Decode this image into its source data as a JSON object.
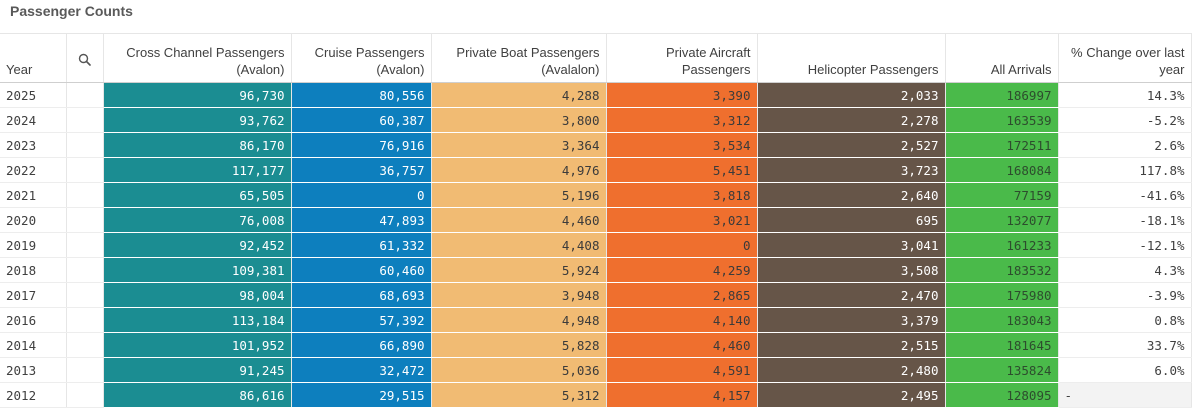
{
  "title": "Passenger Counts",
  "columns": {
    "year": "Year",
    "search_icon": "search-icon",
    "cross_channel": "Cross Channel Passengers (Avalon)",
    "cruise": "Cruise Passengers (Avalon)",
    "private_boat": "Private Boat Passengers (Avalalon)",
    "private_aircraft": "Private Aircraft Passengers",
    "helicopter": "Helicopter Passengers",
    "all_arrivals": "All Arrivals",
    "pct_change": "% Change over last year"
  },
  "colors": {
    "cross_channel": "#1b8d92",
    "cruise": "#0d7fbe",
    "private_boat": "#f1bb73",
    "private_aircraft": "#ef6f2e",
    "helicopter": "#665548",
    "all_arrivals": "#4aba4a"
  },
  "rows": [
    {
      "year": "2025",
      "cross": "96,730",
      "cruise": "80,556",
      "boat": "4,288",
      "air": "3,390",
      "heli": "2,033",
      "all": "186997",
      "pct": "14.3%"
    },
    {
      "year": "2024",
      "cross": "93,762",
      "cruise": "60,387",
      "boat": "3,800",
      "air": "3,312",
      "heli": "2,278",
      "all": "163539",
      "pct": "-5.2%"
    },
    {
      "year": "2023",
      "cross": "86,170",
      "cruise": "76,916",
      "boat": "3,364",
      "air": "3,534",
      "heli": "2,527",
      "all": "172511",
      "pct": "2.6%"
    },
    {
      "year": "2022",
      "cross": "117,177",
      "cruise": "36,757",
      "boat": "4,976",
      "air": "5,451",
      "heli": "3,723",
      "all": "168084",
      "pct": "117.8%"
    },
    {
      "year": "2021",
      "cross": "65,505",
      "cruise": "0",
      "boat": "5,196",
      "air": "3,818",
      "heli": "2,640",
      "all": "77159",
      "pct": "-41.6%"
    },
    {
      "year": "2020",
      "cross": "76,008",
      "cruise": "47,893",
      "boat": "4,460",
      "air": "3,021",
      "heli": "695",
      "all": "132077",
      "pct": "-18.1%"
    },
    {
      "year": "2019",
      "cross": "92,452",
      "cruise": "61,332",
      "boat": "4,408",
      "air": "0",
      "heli": "3,041",
      "all": "161233",
      "pct": "-12.1%"
    },
    {
      "year": "2018",
      "cross": "109,381",
      "cruise": "60,460",
      "boat": "5,924",
      "air": "4,259",
      "heli": "3,508",
      "all": "183532",
      "pct": "4.3%"
    },
    {
      "year": "2017",
      "cross": "98,004",
      "cruise": "68,693",
      "boat": "3,948",
      "air": "2,865",
      "heli": "2,470",
      "all": "175980",
      "pct": "-3.9%"
    },
    {
      "year": "2016",
      "cross": "113,184",
      "cruise": "57,392",
      "boat": "4,948",
      "air": "4,140",
      "heli": "3,379",
      "all": "183043",
      "pct": "0.8%"
    },
    {
      "year": "2014",
      "cross": "101,952",
      "cruise": "66,890",
      "boat": "5,828",
      "air": "4,460",
      "heli": "2,515",
      "all": "181645",
      "pct": "33.7%"
    },
    {
      "year": "2013",
      "cross": "91,245",
      "cruise": "32,472",
      "boat": "5,036",
      "air": "4,591",
      "heli": "2,480",
      "all": "135824",
      "pct": "6.0%"
    },
    {
      "year": "2012",
      "cross": "86,616",
      "cruise": "29,515",
      "boat": "5,312",
      "air": "4,157",
      "heli": "2,495",
      "all": "128095",
      "pct": "-"
    }
  ]
}
